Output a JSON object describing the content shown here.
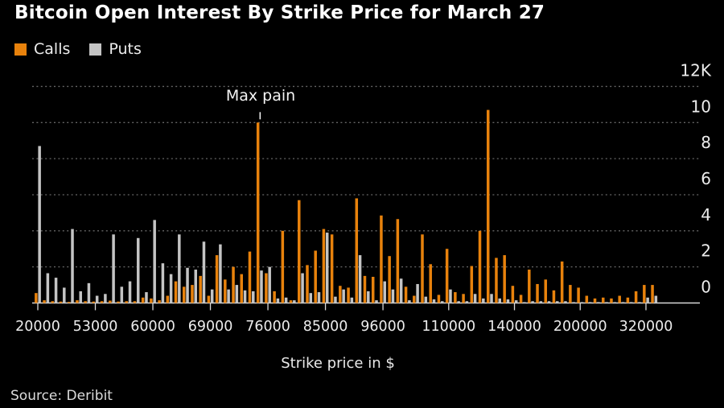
{
  "source": "Source: Deribit",
  "palette": {
    "background": "#000000",
    "calls_orange": "#E8820C",
    "puts_gray": "#C4C4C4",
    "gridline": "#666666",
    "axis_line": "#D9D9D9",
    "label_text": "#ECECEC"
  },
  "chart_data": {
    "type": "bar",
    "title": "Bitcoin Open Interest By Strike Price for March 27",
    "xlabel": "Strike price in $",
    "ylabel": "",
    "annotation": "Max pain",
    "legend_position": "top-left",
    "grid": "horizontal-dotted",
    "ylim": [
      0,
      12
    ],
    "y_unit": "K (thousands of contracts)",
    "y_ticks": [
      {
        "value": 0,
        "label": "0"
      },
      {
        "value": 2,
        "label": "2"
      },
      {
        "value": 4,
        "label": "4"
      },
      {
        "value": 6,
        "label": "6"
      },
      {
        "value": 8,
        "label": "8"
      },
      {
        "value": 10,
        "label": "10"
      },
      {
        "value": 12,
        "label": "12K"
      }
    ],
    "x_ticks": [
      {
        "index": 0,
        "label": "20000"
      },
      {
        "index": 7,
        "label": "53000"
      },
      {
        "index": 14,
        "label": "60000"
      },
      {
        "index": 21,
        "label": "69000"
      },
      {
        "index": 28,
        "label": "76000"
      },
      {
        "index": 35,
        "label": "85000"
      },
      {
        "index": 42,
        "label": "96000"
      },
      {
        "index": 50,
        "label": "110000"
      },
      {
        "index": 58,
        "label": "140000"
      },
      {
        "index": 66,
        "label": "200000"
      },
      {
        "index": 74,
        "label": "320000"
      }
    ],
    "max_pain_index": 27,
    "series": [
      {
        "name": "Calls",
        "color": "#E8820C",
        "values": [
          0.55,
          0.15,
          0.1,
          0.08,
          0.06,
          0.15,
          0.1,
          0.08,
          0.1,
          0.13,
          0.08,
          0.1,
          0.1,
          0.3,
          0.25,
          0.15,
          0.4,
          1.2,
          0.9,
          1.0,
          1.5,
          0.4,
          2.65,
          1.3,
          2.0,
          1.6,
          2.85,
          10.0,
          1.65,
          0.65,
          4.0,
          0.15,
          5.7,
          2.1,
          2.9,
          4.1,
          3.8,
          0.95,
          0.85,
          5.8,
          1.5,
          1.45,
          4.85,
          2.6,
          4.65,
          0.9,
          0.4,
          3.8,
          2.15,
          0.45,
          3.0,
          0.6,
          0.5,
          2.05,
          4.0,
          10.7,
          2.5,
          2.65,
          0.95,
          0.45,
          1.85,
          1.05,
          1.3,
          0.7,
          2.3,
          1.0,
          0.85,
          0.4,
          0.25,
          0.3,
          0.25,
          0.4,
          0.3,
          0.65,
          1.0,
          1.0
        ]
      },
      {
        "name": "Puts",
        "color": "#C4C4C4",
        "values": [
          8.7,
          1.65,
          1.4,
          0.85,
          4.1,
          0.65,
          1.1,
          0.4,
          0.5,
          3.8,
          0.9,
          1.2,
          3.6,
          0.6,
          4.6,
          2.2,
          1.6,
          3.8,
          1.95,
          1.85,
          3.4,
          0.75,
          3.25,
          0.75,
          1.0,
          0.7,
          0.65,
          1.8,
          2.0,
          0.25,
          0.3,
          0.15,
          1.65,
          0.55,
          0.6,
          3.9,
          0.35,
          0.75,
          0.3,
          2.65,
          0.65,
          0.15,
          1.2,
          0.75,
          1.35,
          0.15,
          1.05,
          0.35,
          0.2,
          0.1,
          0.75,
          0.1,
          0.1,
          0.5,
          0.25,
          0.5,
          0.25,
          0.2,
          0.15,
          0.05,
          0.1,
          0.1,
          0.1,
          0.1,
          0.1,
          0.05,
          0.05,
          0.05,
          0.05,
          0.05,
          0.05,
          0.05,
          0.05,
          0.05,
          0.3,
          0.4
        ]
      }
    ]
  }
}
